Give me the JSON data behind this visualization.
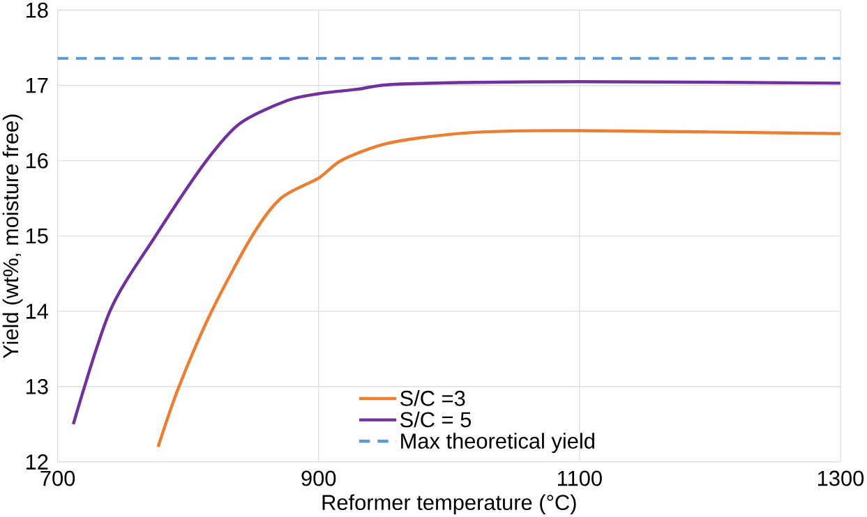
{
  "chart_data": {
    "type": "line",
    "xlabel": "Reformer temperature (°C)",
    "ylabel": "Yield (wt%, moisture free)",
    "xlim": [
      700,
      1300
    ],
    "xticks": [
      700,
      900,
      1100,
      1300
    ],
    "ylim": [
      12,
      18
    ],
    "yticks": [
      12,
      13,
      14,
      15,
      16,
      17,
      18
    ],
    "grid": true,
    "legend": "bottom right",
    "marker": "none",
    "series": [
      {
        "name": "S/C =3",
        "color": "#ed7d31",
        "line_style": "solid",
        "x": [
          777,
          793,
          818,
          849,
          871,
          900,
          917,
          946,
          976,
          1023,
          1100,
          1300
        ],
        "values": [
          12.2,
          13,
          14,
          15,
          15.5,
          15.77,
          16,
          16.2,
          16.3,
          16.38,
          16.4,
          16.36
        ]
      },
      {
        "name": "S/C = 5",
        "color": "#7030a0",
        "line_style": "solid",
        "x": [
          712,
          740,
          775,
          814,
          840,
          876,
          900,
          930,
          964,
          1100,
          1300
        ],
        "values": [
          12.5,
          14,
          15,
          16,
          16.5,
          16.8,
          16.89,
          16.95,
          17.02,
          17.05,
          17.03
        ]
      },
      {
        "name": "Max theoretical yield",
        "color": "#5b9bd5",
        "line_style": "dashed",
        "x": [
          700,
          1300
        ],
        "values": [
          17.36,
          17.36
        ]
      }
    ]
  }
}
